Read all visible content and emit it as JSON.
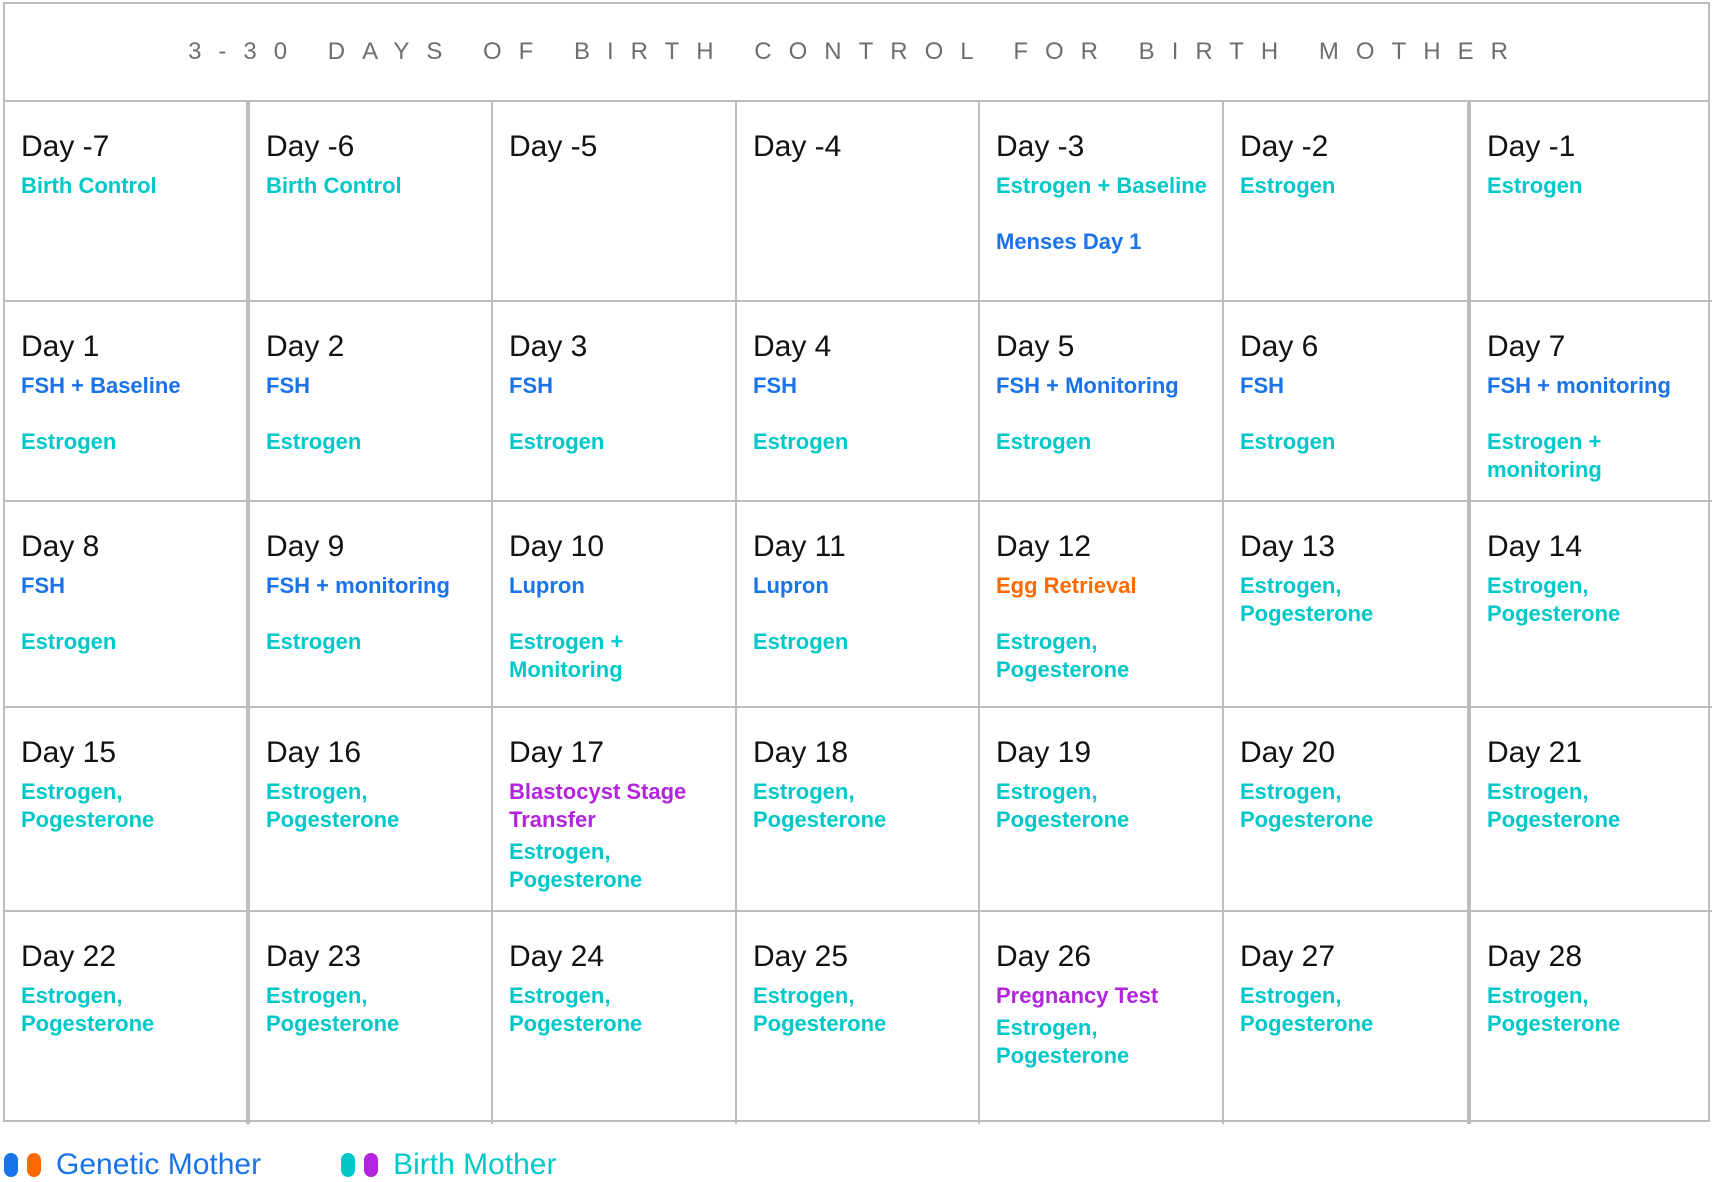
{
  "title": "3-30 DAYS OF BIRTH CONTROL FOR BIRTH MOTHER",
  "colors": {
    "blue": "#1a73e8",
    "orange": "#ff6a00",
    "teal": "#00c8c8",
    "purple": "#b224e0"
  },
  "cells": [
    {
      "day": "Day -7",
      "items": [
        {
          "text": "Birth Control",
          "color": "teal"
        }
      ]
    },
    {
      "day": "Day -6",
      "items": [
        {
          "text": "Birth Control",
          "color": "teal"
        }
      ]
    },
    {
      "day": "Day -5",
      "items": []
    },
    {
      "day": "Day -4",
      "items": []
    },
    {
      "day": "Day -3",
      "items": [
        {
          "text": "Estrogen + Baseline",
          "color": "teal"
        },
        {
          "text": "Menses Day 1",
          "color": "blue",
          "gap": true
        }
      ]
    },
    {
      "day": "Day -2",
      "items": [
        {
          "text": "Estrogen",
          "color": "teal"
        }
      ]
    },
    {
      "day": "Day -1",
      "items": [
        {
          "text": "Estrogen",
          "color": "teal"
        }
      ]
    },
    {
      "day": "Day 1",
      "items": [
        {
          "text": "FSH + Baseline",
          "color": "blue"
        },
        {
          "text": "Estrogen",
          "color": "teal",
          "gap": true
        }
      ]
    },
    {
      "day": "Day 2",
      "items": [
        {
          "text": "FSH",
          "color": "blue"
        },
        {
          "text": "Estrogen",
          "color": "teal",
          "gap": true
        }
      ]
    },
    {
      "day": "Day 3",
      "items": [
        {
          "text": "FSH",
          "color": "blue"
        },
        {
          "text": "Estrogen",
          "color": "teal",
          "gap": true
        }
      ]
    },
    {
      "day": "Day 4",
      "items": [
        {
          "text": "FSH",
          "color": "blue"
        },
        {
          "text": "Estrogen",
          "color": "teal",
          "gap": true
        }
      ]
    },
    {
      "day": "Day 5",
      "items": [
        {
          "text": "FSH + Monitoring",
          "color": "blue"
        },
        {
          "text": "Estrogen",
          "color": "teal",
          "gap": true
        }
      ]
    },
    {
      "day": "Day 6",
      "items": [
        {
          "text": "FSH",
          "color": "blue"
        },
        {
          "text": "Estrogen",
          "color": "teal",
          "gap": true
        }
      ]
    },
    {
      "day": "Day 7",
      "items": [
        {
          "text": "FSH + monitoring",
          "color": "blue"
        },
        {
          "text": "Estrogen + monitoring",
          "color": "teal",
          "gap": true
        }
      ]
    },
    {
      "day": "Day 8",
      "items": [
        {
          "text": "FSH",
          "color": "blue"
        },
        {
          "text": "Estrogen",
          "color": "teal",
          "gap": true
        }
      ]
    },
    {
      "day": "Day 9",
      "items": [
        {
          "text": "FSH + monitoring",
          "color": "blue"
        },
        {
          "text": "Estrogen",
          "color": "teal",
          "gap": true
        }
      ]
    },
    {
      "day": "Day 10",
      "items": [
        {
          "text": "Lupron",
          "color": "blue"
        },
        {
          "text": "Estrogen + Monitoring",
          "color": "teal",
          "gap": true
        }
      ]
    },
    {
      "day": "Day 11",
      "items": [
        {
          "text": "Lupron",
          "color": "blue"
        },
        {
          "text": "Estrogen",
          "color": "teal",
          "gap": true
        }
      ]
    },
    {
      "day": "Day 12",
      "items": [
        {
          "text": "Egg Retrieval",
          "color": "orange"
        },
        {
          "text": "Estrogen, Pogesterone",
          "color": "teal",
          "gap": true
        }
      ]
    },
    {
      "day": "Day 13",
      "items": [
        {
          "text": "Estrogen, Pogesterone",
          "color": "teal"
        }
      ]
    },
    {
      "day": "Day 14",
      "items": [
        {
          "text": "Estrogen, Pogesterone",
          "color": "teal"
        }
      ]
    },
    {
      "day": "Day 15",
      "items": [
        {
          "text": "Estrogen, Pogesterone",
          "color": "teal"
        }
      ]
    },
    {
      "day": "Day 16",
      "items": [
        {
          "text": "Estrogen, Pogesterone",
          "color": "teal"
        }
      ]
    },
    {
      "day": "Day 17",
      "items": [
        {
          "text": "Blastocyst Stage Transfer",
          "color": "purple"
        },
        {
          "text": "Estrogen, Pogesterone",
          "color": "teal"
        }
      ]
    },
    {
      "day": "Day 18",
      "items": [
        {
          "text": "Estrogen, Pogesterone",
          "color": "teal"
        }
      ]
    },
    {
      "day": "Day 19",
      "items": [
        {
          "text": "Estrogen, Pogesterone",
          "color": "teal"
        }
      ]
    },
    {
      "day": "Day 20",
      "items": [
        {
          "text": "Estrogen, Pogesterone",
          "color": "teal"
        }
      ]
    },
    {
      "day": "Day 21",
      "items": [
        {
          "text": "Estrogen, Pogesterone",
          "color": "teal"
        }
      ]
    },
    {
      "day": "Day 22",
      "items": [
        {
          "text": "Estrogen, Pogesterone",
          "color": "teal"
        }
      ]
    },
    {
      "day": "Day 23",
      "items": [
        {
          "text": "Estrogen, Pogesterone",
          "color": "teal"
        }
      ]
    },
    {
      "day": "Day 24",
      "items": [
        {
          "text": "Estrogen, Pogesterone",
          "color": "teal"
        }
      ]
    },
    {
      "day": "Day 25",
      "items": [
        {
          "text": "Estrogen, Pogesterone",
          "color": "teal"
        }
      ]
    },
    {
      "day": "Day 26",
      "items": [
        {
          "text": "Pregnancy Test",
          "color": "purple"
        },
        {
          "text": "Estrogen, Pogesterone",
          "color": "teal"
        }
      ]
    },
    {
      "day": "Day 27",
      "items": [
        {
          "text": "Estrogen, Pogesterone",
          "color": "teal"
        }
      ]
    },
    {
      "day": "Day 28",
      "items": [
        {
          "text": "Estrogen, Pogesterone",
          "color": "teal"
        }
      ]
    }
  ],
  "legend": [
    {
      "label": "Genetic Mother",
      "text_color": "blue",
      "pills": [
        "blue",
        "orange"
      ]
    },
    {
      "label": "Birth Mother",
      "text_color": "teal",
      "pills": [
        "teal",
        "purple"
      ]
    }
  ]
}
